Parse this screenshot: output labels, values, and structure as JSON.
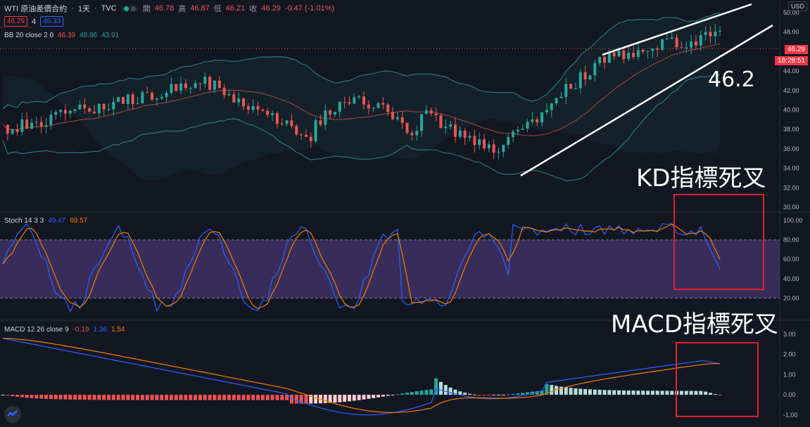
{
  "header": {
    "symbol": "WTI 原油差價合約",
    "interval": "1天",
    "source": "TVC",
    "price_box": "46.29",
    "spread": "4",
    "price_box2": "46.33",
    "ohlc": {
      "open_label": "開",
      "open": "46.78",
      "high_label": "高",
      "high": "46.87",
      "low_label": "低",
      "low": "46.21",
      "close_label": "收",
      "close": "46.29",
      "change": "-0.47 (-1.01%)"
    },
    "bb": {
      "label": "BB 20 close 2 0",
      "basis": "46.39",
      "upper": "48.86",
      "lower": "43.91"
    }
  },
  "price_axis": {
    "unit": "USD",
    "ticks": [
      "50.00",
      "48.00",
      "44.00",
      "42.00",
      "40.00",
      "38.00",
      "36.00",
      "34.00",
      "32.00",
      "30.00"
    ],
    "last_price": "46.29",
    "countdown": "18:28:51"
  },
  "stoch": {
    "label": "Stoch 14 3 3",
    "k": "49.47",
    "d": "69.57",
    "ticks": [
      "100.00",
      "80.00",
      "60.00",
      "40.00",
      "20.00"
    ]
  },
  "macd": {
    "label": "MACD 12 26 close 9",
    "hist": "-0.19",
    "macd": "1.36",
    "signal": "1.54",
    "ticks": [
      "3.00",
      "2.00",
      "1.00",
      "0.00",
      "-1.00"
    ]
  },
  "annotations": {
    "target": "46.2",
    "kd": "KD指標死叉",
    "macd": "MACD指標死叉"
  },
  "colors": {
    "bg": "#131722",
    "up": "#26a69a",
    "down": "#ef5350",
    "k_line": "#2962ff",
    "d_line": "#f57c00",
    "band": "#7e57c2"
  },
  "icons": {
    "logo": "tradingview-logo-icon"
  }
}
